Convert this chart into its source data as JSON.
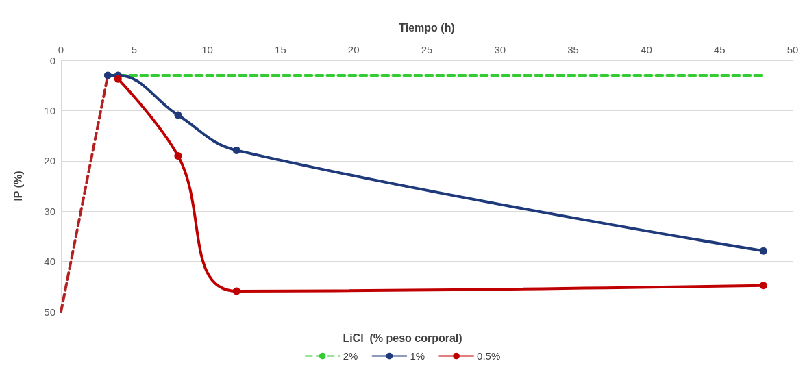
{
  "chart_data": {
    "type": "line",
    "xlabel": "Tiempo (h)",
    "ylabel": "IP (%)",
    "legend_title": "LiCl  (% peso corporal)",
    "xlim": [
      0,
      50
    ],
    "xticks": [
      0,
      5,
      10,
      15,
      20,
      25,
      30,
      35,
      40,
      45,
      50
    ],
    "ylim": [
      50,
      0
    ],
    "yticks": [
      0,
      10,
      20,
      30,
      40,
      50
    ],
    "grid": "y",
    "legend": "bottom",
    "marker": "circle",
    "series": [
      {
        "name": "2%",
        "color": "#33cc33",
        "line_style": "dashed",
        "marker": "none",
        "x": [
          3.2,
          48
        ],
        "values": [
          3,
          3
        ]
      },
      {
        "name": "1%",
        "color": "#1f3a7a",
        "line_style": "solid",
        "x": [
          3.2,
          3.9,
          8,
          12,
          48
        ],
        "values": [
          3,
          3,
          10.9,
          17.9,
          37.9
        ]
      },
      {
        "name": "0.5%",
        "color": "#c00000",
        "line_style": "solid",
        "x": [
          3.9,
          8,
          12,
          48
        ],
        "values": [
          3.7,
          19,
          45.9,
          44.8
        ]
      },
      {
        "color": "#b22222",
        "line_style": "dashed",
        "marker": "none",
        "x": [
          0,
          3.2
        ],
        "values": [
          50,
          3
        ]
      }
    ]
  }
}
